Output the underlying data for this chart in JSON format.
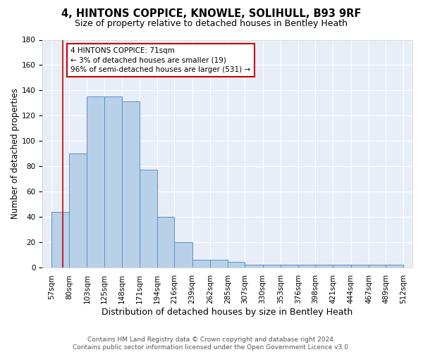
{
  "title": "4, HINTONS COPPICE, KNOWLE, SOLIHULL, B93 9RF",
  "subtitle": "Size of property relative to detached houses in Bentley Heath",
  "xlabel": "Distribution of detached houses by size in Bentley Heath",
  "ylabel": "Number of detached properties",
  "categories": [
    "57sqm",
    "80sqm",
    "103sqm",
    "125sqm",
    "148sqm",
    "171sqm",
    "194sqm",
    "216sqm",
    "239sqm",
    "262sqm",
    "285sqm",
    "307sqm",
    "330sqm",
    "353sqm",
    "376sqm",
    "398sqm",
    "421sqm",
    "444sqm",
    "467sqm",
    "489sqm",
    "512sqm"
  ],
  "bar_heights": [
    44,
    90,
    135,
    135,
    131,
    77,
    40,
    20,
    6,
    6,
    4,
    2,
    2,
    2,
    2,
    2,
    2,
    2,
    2,
    2
  ],
  "bar_color": "#b8d0e8",
  "bar_edge_color": "#5b8fc9",
  "vline_x_index": 0.62,
  "vline_color": "#cc0000",
  "annotation_box_edge_color": "#cc0000",
  "annotation_text_lines": [
    "4 HINTONS COPPICE: 71sqm",
    "← 3% of detached houses are smaller (19)",
    "96% of semi-detached houses are larger (531) →"
  ],
  "ylim": [
    0,
    180
  ],
  "background_color": "#e8eef8",
  "footer_text": "Contains HM Land Registry data © Crown copyright and database right 2024.\nContains public sector information licensed under the Open Government Licence v3.0.",
  "title_fontsize": 10.5,
  "subtitle_fontsize": 9,
  "xlabel_fontsize": 9,
  "ylabel_fontsize": 8.5,
  "tick_fontsize": 7.5,
  "annotation_fontsize": 7.5,
  "footer_fontsize": 6.5
}
